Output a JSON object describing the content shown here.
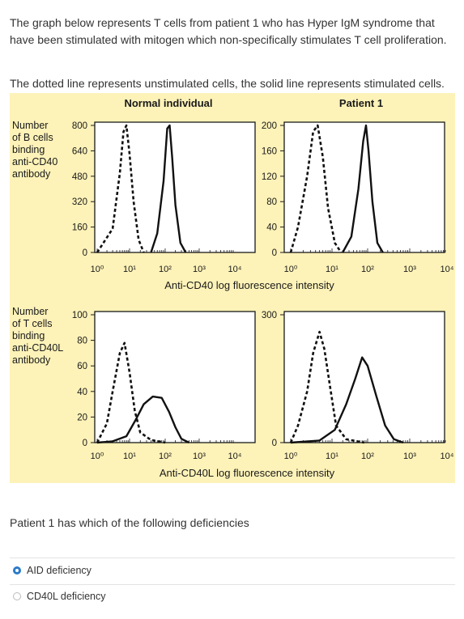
{
  "question": {
    "intro": "The graph below represents T cells from patient 1 who has Hyper IgM syndrome that have been stimulated with mitogen which non-specifically stimulates T cell proliferation.",
    "legend_note": "The dotted line represents unstimulated cells, the solid line represents stimulated cells.",
    "prompt": "Patient 1 has which of the following deficiencies",
    "options": [
      {
        "label": "AID deficiency",
        "selected": true
      },
      {
        "label": "CD40L deficiency",
        "selected": false
      }
    ]
  },
  "figure": {
    "header_left": "Normal individual",
    "header_right": "Patient 1",
    "row1_ylabel": [
      "Number",
      "of B cells",
      "binding",
      "anti-CD40",
      "antibody"
    ],
    "row2_ylabel": [
      "Number",
      "of T cells",
      "binding",
      "anti-CD40L",
      "antibody"
    ],
    "row1_xlabel": "Anti-CD40 log fluorescence intensity",
    "row2_xlabel": "Anti-CD40L log fluorescence intensity",
    "x_ticks": [
      "10⁰",
      "10¹",
      "10²",
      "10³",
      "10⁴"
    ],
    "background": "#fdf2b8"
  },
  "chart_data": [
    {
      "type": "line",
      "panel": "Normal individual",
      "xlabel": "Anti-CD40 log fluorescence intensity",
      "x_scale": "log",
      "ylabel": "Number of B cells binding anti-CD40 antibody",
      "ylim": [
        0,
        800
      ],
      "yticks": [
        0,
        160,
        320,
        480,
        640,
        800
      ],
      "series": [
        {
          "x": [
            1,
            3,
            5,
            6.5,
            8,
            10,
            13,
            18,
            25
          ],
          "y": [
            0,
            150,
            500,
            760,
            800,
            620,
            320,
            80,
            0
          ]
        },
        {
          "x": [
            40,
            60,
            90,
            115,
            135,
            160,
            200,
            280,
            400
          ],
          "y": [
            0,
            120,
            450,
            780,
            800,
            600,
            300,
            60,
            0
          ]
        }
      ]
    },
    {
      "type": "line",
      "panel": "Patient 1",
      "xlabel": "Anti-CD40 log fluorescence intensity",
      "x_scale": "log",
      "ylabel": "Number of B cells binding anti-CD40 antibody",
      "ylim": [
        0,
        200
      ],
      "yticks": [
        0,
        40,
        80,
        120,
        160,
        200
      ],
      "series": [
        {
          "x": [
            1,
            1.5,
            2.5,
            3.5,
            4.5,
            6,
            8,
            12,
            18
          ],
          "y": [
            0,
            40,
            120,
            190,
            200,
            150,
            70,
            15,
            0
          ]
        },
        {
          "x": [
            20,
            35,
            55,
            75,
            90,
            105,
            130,
            170,
            230
          ],
          "y": [
            0,
            25,
            100,
            175,
            200,
            160,
            80,
            15,
            0
          ]
        }
      ]
    },
    {
      "type": "line",
      "panel": "Normal individual",
      "xlabel": "Anti-CD40L log fluorescence intensity",
      "x_scale": "log",
      "ylabel": "Number of T cells binding anti-CD40L antibody",
      "ylim": [
        0,
        100
      ],
      "yticks": [
        0,
        20,
        40,
        60,
        80,
        100
      ],
      "series": [
        {
          "x": [
            1,
            2,
            3,
            5,
            7,
            10,
            14,
            20,
            40,
            100
          ],
          "y": [
            0,
            15,
            40,
            70,
            78,
            55,
            25,
            8,
            2,
            0
          ]
        },
        {
          "x": [
            1,
            3,
            8,
            15,
            25,
            45,
            80,
            130,
            200,
            300,
            500
          ],
          "y": [
            0,
            1,
            5,
            18,
            30,
            36,
            35,
            24,
            12,
            3,
            0
          ]
        }
      ]
    },
    {
      "type": "line",
      "panel": "Patient 1",
      "xlabel": "Anti-CD40L log fluorescence intensity",
      "x_scale": "log",
      "ylabel": "Number of T cells binding anti-CD40L antibody",
      "ylim": [
        0,
        300
      ],
      "yticks": [
        0,
        300
      ],
      "series": [
        {
          "x": [
            1,
            1.5,
            2.5,
            3.5,
            5,
            6.5,
            9,
            13,
            25,
            80
          ],
          "y": [
            0,
            40,
            120,
            210,
            260,
            220,
            130,
            40,
            8,
            0
          ]
        },
        {
          "x": [
            1,
            5,
            12,
            25,
            45,
            70,
            100,
            160,
            260,
            420,
            700
          ],
          "y": [
            0,
            5,
            30,
            90,
            150,
            200,
            180,
            110,
            40,
            8,
            0
          ]
        }
      ]
    }
  ]
}
